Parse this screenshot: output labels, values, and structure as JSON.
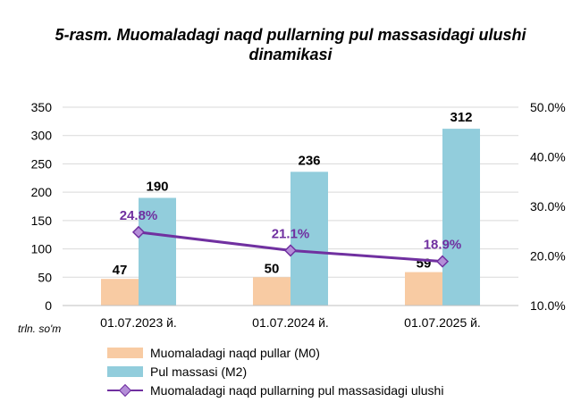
{
  "chart_data": {
    "type": "bar",
    "title_line1": "5-rasm. Muomaladagi naqd pullarning pul massasidagi ulushi",
    "title_line2": "dinamikasi",
    "unit_label": "trln. so'm",
    "categories": [
      "01.07.2023 й.",
      "01.07.2024 й.",
      "01.07.2025 й."
    ],
    "ylim": [
      0,
      350
    ],
    "yticks": [
      "0",
      "50",
      "100",
      "150",
      "200",
      "250",
      "300",
      "350"
    ],
    "y2lim": [
      10,
      50
    ],
    "y2ticks": [
      "10.0%",
      "20.0%",
      "30.0%",
      "40.0%",
      "50.0%"
    ],
    "series": [
      {
        "name": "Muomaladagi naqd pullar (M0)",
        "type": "bar",
        "axis": "left",
        "values": [
          47,
          50,
          59
        ],
        "labels": [
          "47",
          "50",
          "59"
        ],
        "color": "#f8cba3"
      },
      {
        "name": "Pul massasi (M2)",
        "type": "bar",
        "axis": "left",
        "values": [
          190,
          236,
          312
        ],
        "labels": [
          "190",
          "236",
          "312"
        ],
        "color": "#92cddc"
      },
      {
        "name": "Muomaladagi naqd pullarning pul massasidagi ulushi",
        "type": "line",
        "axis": "right",
        "values": [
          24.8,
          21.1,
          18.9
        ],
        "labels": [
          "24.8%",
          "21.1%",
          "18.9%"
        ],
        "color": "#7030a0",
        "marker_color": "#b48ed8"
      }
    ],
    "grid": "horizontal",
    "legend_position": "bottom"
  }
}
